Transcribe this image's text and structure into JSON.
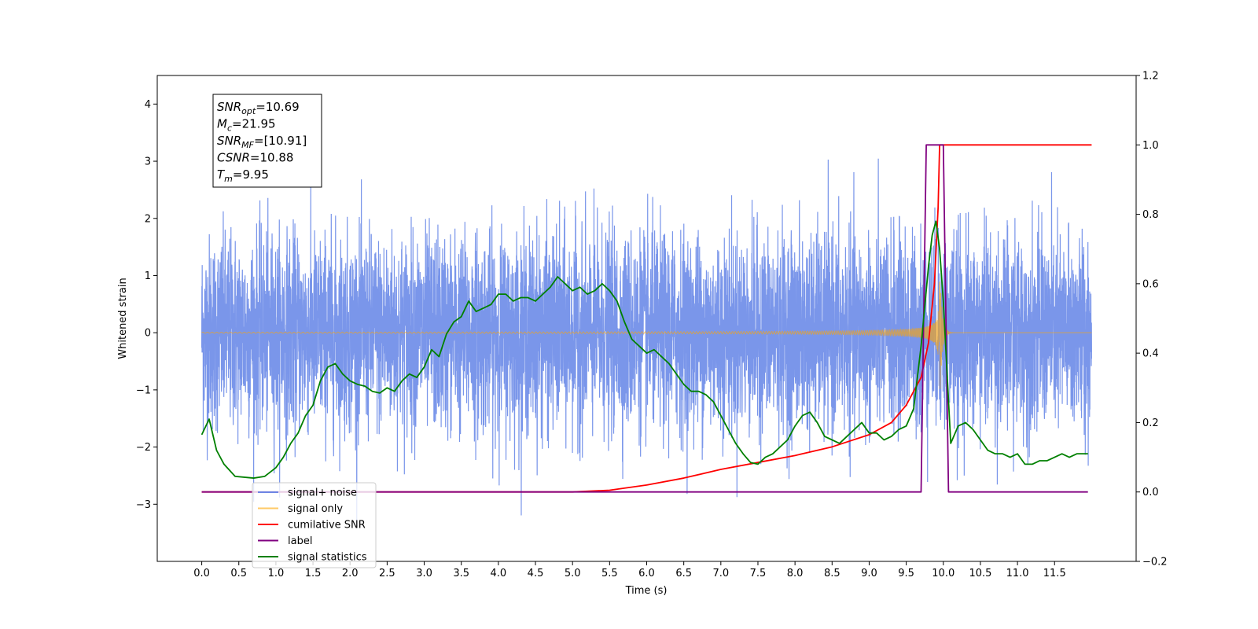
{
  "chart_data": {
    "type": "line",
    "xlabel": "Time (s)",
    "ylabel": "Whitened strain",
    "xlim": [
      -0.6,
      12.6
    ],
    "ylim": [
      -4.0,
      4.5
    ],
    "y2lim": [
      -0.2,
      1.2
    ],
    "xticks": [
      "0.0",
      "0.5",
      "1.0",
      "1.5",
      "2.0",
      "2.5",
      "3.0",
      "3.5",
      "4.0",
      "4.5",
      "5.0",
      "5.5",
      "6.0",
      "6.5",
      "7.0",
      "7.5",
      "8.0",
      "8.5",
      "9.0",
      "9.5",
      "10.0",
      "10.5",
      "11.0",
      "11.5"
    ],
    "yticks": [
      "−3",
      "−2",
      "−1",
      "0",
      "1",
      "2",
      "3",
      "4"
    ],
    "y2ticks": [
      "−0.2",
      "0.0",
      "0.2",
      "0.4",
      "0.6",
      "0.8",
      "1.0",
      "1.2"
    ],
    "annotation": {
      "lines": [
        {
          "base": "SNR",
          "sub": "opt",
          "rest": "=10.69"
        },
        {
          "base": "M",
          "sub": "c",
          "rest": "=21.95"
        },
        {
          "base": "SNR",
          "sub": "MF",
          "rest": "=[10.91]"
        },
        {
          "base": "CSNR",
          "sub": "",
          "rest": "=10.88"
        },
        {
          "base": "T",
          "sub": "m",
          "rest": "=9.95"
        }
      ]
    },
    "legend": {
      "placement": "lower-left",
      "entries": [
        {
          "label": "signal+ noise",
          "color": "#4169e1"
        },
        {
          "label": "signal only",
          "color": "#ffa500"
        },
        {
          "label": "cumilative SNR",
          "color": "#ff0000"
        },
        {
          "label": "label",
          "color": "#800080"
        },
        {
          "label": "signal statistics",
          "color": "#008000"
        }
      ]
    },
    "series": [
      {
        "name": "signal+ noise",
        "axis": "left",
        "color": "#4169e1",
        "kind": "white-noise",
        "x_range": [
          0.0,
          12.0
        ],
        "noise_sigma": 0.85,
        "typical_range": [
          -2.6,
          3.5
        ]
      },
      {
        "name": "signal only",
        "axis": "left",
        "color": "#ffa500",
        "kind": "chirp",
        "x_range": [
          0.0,
          12.0
        ],
        "merger_time": 9.95,
        "peak_amplitude": 1.3
      },
      {
        "name": "cumilative SNR",
        "axis": "right",
        "color": "#ff0000",
        "x": [
          0.0,
          5.0,
          5.5,
          6.0,
          6.5,
          7.0,
          7.5,
          8.0,
          8.5,
          9.0,
          9.3,
          9.5,
          9.7,
          9.8,
          9.88,
          9.93,
          9.95,
          12.0
        ],
        "y": [
          0.0,
          0.0,
          0.005,
          0.02,
          0.04,
          0.065,
          0.085,
          0.105,
          0.13,
          0.165,
          0.2,
          0.25,
          0.33,
          0.43,
          0.6,
          0.82,
          1.0,
          1.0
        ]
      },
      {
        "name": "label",
        "axis": "right",
        "color": "#800080",
        "x": [
          0.0,
          9.7,
          9.77,
          10.0,
          10.07,
          11.95
        ],
        "y": [
          0.0,
          0.0,
          1.0,
          1.0,
          0.0,
          0.0
        ]
      },
      {
        "name": "signal statistics",
        "axis": "right",
        "color": "#008000",
        "x": [
          0.0,
          0.1,
          0.2,
          0.3,
          0.45,
          0.6,
          0.7,
          0.85,
          1.0,
          1.1,
          1.2,
          1.3,
          1.4,
          1.5,
          1.6,
          1.7,
          1.8,
          1.9,
          2.0,
          2.1,
          2.2,
          2.3,
          2.4,
          2.5,
          2.6,
          2.7,
          2.8,
          2.9,
          3.0,
          3.1,
          3.2,
          3.3,
          3.4,
          3.5,
          3.6,
          3.7,
          3.8,
          3.9,
          4.0,
          4.1,
          4.2,
          4.3,
          4.4,
          4.5,
          4.6,
          4.7,
          4.8,
          4.9,
          5.0,
          5.1,
          5.2,
          5.3,
          5.4,
          5.5,
          5.6,
          5.7,
          5.8,
          5.9,
          6.0,
          6.1,
          6.2,
          6.3,
          6.4,
          6.5,
          6.6,
          6.7,
          6.8,
          6.9,
          7.0,
          7.1,
          7.2,
          7.3,
          7.4,
          7.5,
          7.6,
          7.7,
          7.8,
          7.9,
          8.0,
          8.1,
          8.2,
          8.3,
          8.4,
          8.5,
          8.6,
          8.7,
          8.8,
          8.9,
          9.0,
          9.1,
          9.2,
          9.3,
          9.4,
          9.5,
          9.6,
          9.7,
          9.8,
          9.85,
          9.9,
          9.95,
          10.0,
          10.1,
          10.2,
          10.3,
          10.4,
          10.5,
          10.6,
          10.7,
          10.8,
          10.9,
          11.0,
          11.1,
          11.2,
          11.3,
          11.4,
          11.5,
          11.6,
          11.7,
          11.8,
          11.9,
          11.95
        ],
        "y": [
          0.165,
          0.21,
          0.12,
          0.08,
          0.045,
          0.042,
          0.04,
          0.045,
          0.07,
          0.1,
          0.14,
          0.17,
          0.22,
          0.25,
          0.32,
          0.36,
          0.37,
          0.34,
          0.32,
          0.31,
          0.305,
          0.29,
          0.285,
          0.3,
          0.29,
          0.32,
          0.34,
          0.33,
          0.36,
          0.41,
          0.39,
          0.455,
          0.49,
          0.505,
          0.55,
          0.52,
          0.53,
          0.54,
          0.57,
          0.57,
          0.55,
          0.56,
          0.56,
          0.55,
          0.57,
          0.59,
          0.62,
          0.6,
          0.58,
          0.59,
          0.57,
          0.58,
          0.6,
          0.58,
          0.55,
          0.49,
          0.44,
          0.42,
          0.4,
          0.41,
          0.39,
          0.37,
          0.34,
          0.31,
          0.29,
          0.29,
          0.28,
          0.26,
          0.22,
          0.18,
          0.14,
          0.11,
          0.085,
          0.08,
          0.1,
          0.11,
          0.13,
          0.15,
          0.19,
          0.22,
          0.23,
          0.2,
          0.16,
          0.15,
          0.14,
          0.16,
          0.18,
          0.2,
          0.17,
          0.17,
          0.15,
          0.16,
          0.18,
          0.19,
          0.24,
          0.42,
          0.65,
          0.74,
          0.78,
          0.7,
          0.55,
          0.14,
          0.19,
          0.2,
          0.18,
          0.15,
          0.12,
          0.11,
          0.11,
          0.1,
          0.11,
          0.08,
          0.08,
          0.09,
          0.09,
          0.1,
          0.11,
          0.1,
          0.11,
          0.11,
          0.11
        ]
      }
    ]
  }
}
